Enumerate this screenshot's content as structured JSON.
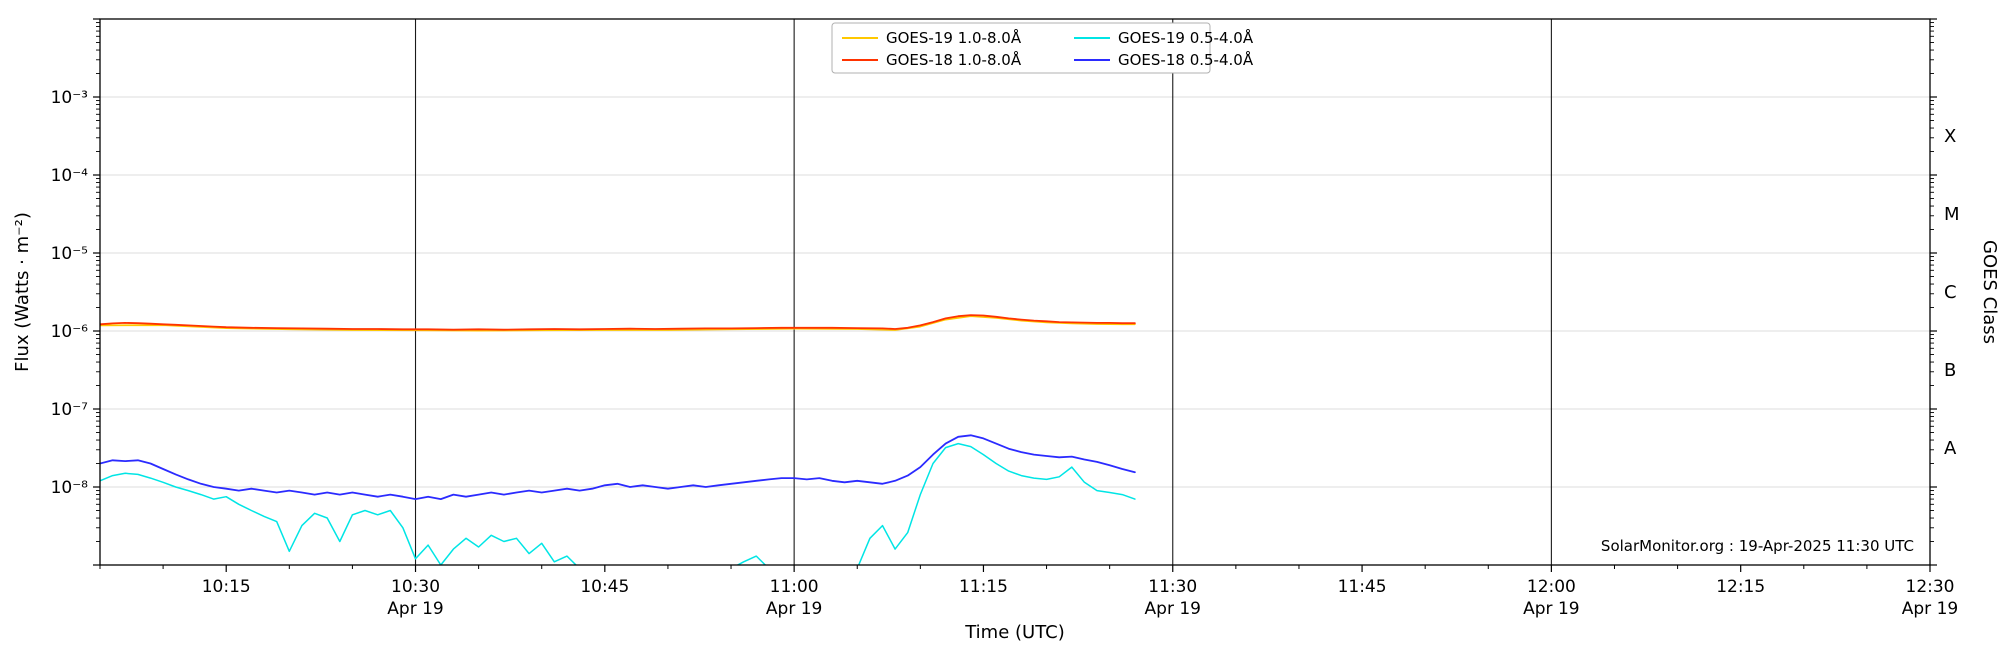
{
  "page": {
    "background": "#ffffff"
  },
  "chart_data": {
    "type": "line",
    "title": "",
    "xlabel": "Time (UTC)",
    "ylabel": "Flux (Watts · m⁻²)",
    "ylabel_right": "GOES Class",
    "x_unit": "minutes after 10:00 UTC on Apr 19",
    "xlim": [
      5,
      150
    ],
    "ylim_log10": [
      -9,
      -2
    ],
    "grid": "horizontal light gray at decades, vertical black lines every 30 min",
    "grid_color": "#dcdcdc",
    "vline_color": "#1a1a1a",
    "axis_color": "#000000",
    "x_major_ticks": [
      {
        "min": 15,
        "label": "10:15"
      },
      {
        "min": 30,
        "label": "10:30"
      },
      {
        "min": 45,
        "label": "10:45"
      },
      {
        "min": 60,
        "label": "11:00"
      },
      {
        "min": 75,
        "label": "11:15"
      },
      {
        "min": 90,
        "label": "11:30"
      },
      {
        "min": 105,
        "label": "11:45"
      },
      {
        "min": 120,
        "label": "12:00"
      },
      {
        "min": 135,
        "label": "12:15"
      },
      {
        "min": 150,
        "label": "12:30"
      }
    ],
    "x_minor_step_min": 5,
    "x_day_label": "Apr 19",
    "x_day_tick_minutes": [
      30,
      60,
      90,
      120,
      150
    ],
    "vertical_lines_minutes": [
      30,
      60,
      90,
      120
    ],
    "y_major_tick_labels": [
      {
        "exp": -3,
        "label": "10⁻³"
      },
      {
        "exp": -4,
        "label": "10⁻⁴"
      },
      {
        "exp": -5,
        "label": "10⁻⁵"
      },
      {
        "exp": -6,
        "label": "10⁻⁶"
      },
      {
        "exp": -7,
        "label": "10⁻⁷"
      },
      {
        "exp": -8,
        "label": "10⁻⁸"
      }
    ],
    "goes_class_labels": [
      {
        "label": "X",
        "log_center": -3.5
      },
      {
        "label": "M",
        "log_center": -4.5
      },
      {
        "label": "C",
        "log_center": -5.5
      },
      {
        "label": "B",
        "log_center": -6.5
      },
      {
        "label": "A",
        "log_center": -7.5
      }
    ],
    "legend": {
      "columns": 2,
      "fill": "column-major",
      "frame": true
    },
    "annotation": "SolarMonitor.org : 19-Apr-2025 11:30 UTC",
    "series": [
      {
        "name": "GOES-19 1.0-8.0Å",
        "color": "#ffc800",
        "width": 1.7,
        "points": [
          [
            5,
            1.18e-06
          ],
          [
            10,
            1.19e-06
          ],
          [
            15,
            1.09e-06
          ],
          [
            20,
            1.05e-06
          ],
          [
            25,
            1.03e-06
          ],
          [
            30,
            1.02e-06
          ],
          [
            35,
            1.01e-06
          ],
          [
            40,
            1.02e-06
          ],
          [
            45,
            1.03e-06
          ],
          [
            50,
            1.03e-06
          ],
          [
            55,
            1.05e-06
          ],
          [
            60,
            1.07e-06
          ],
          [
            65,
            1.06e-06
          ],
          [
            68,
            1.03e-06
          ],
          [
            70,
            1.14e-06
          ],
          [
            72,
            1.4e-06
          ],
          [
            74,
            1.55e-06
          ],
          [
            76,
            1.47e-06
          ],
          [
            78,
            1.36e-06
          ],
          [
            80,
            1.29e-06
          ],
          [
            82,
            1.25e-06
          ],
          [
            84,
            1.23e-06
          ],
          [
            86,
            1.22e-06
          ],
          [
            87,
            1.22e-06
          ]
        ]
      },
      {
        "name": "GOES-18 1.0-8.0Å",
        "color": "#ff3300",
        "width": 1.8,
        "points": [
          [
            5,
            1.22e-06
          ],
          [
            6,
            1.25e-06
          ],
          [
            7,
            1.27e-06
          ],
          [
            8,
            1.26e-06
          ],
          [
            9,
            1.24e-06
          ],
          [
            10,
            1.22e-06
          ],
          [
            11,
            1.2e-06
          ],
          [
            12,
            1.18e-06
          ],
          [
            13,
            1.16e-06
          ],
          [
            14,
            1.14e-06
          ],
          [
            15,
            1.12e-06
          ],
          [
            17,
            1.1e-06
          ],
          [
            19,
            1.09e-06
          ],
          [
            21,
            1.08e-06
          ],
          [
            23,
            1.07e-06
          ],
          [
            25,
            1.06e-06
          ],
          [
            27,
            1.06e-06
          ],
          [
            29,
            1.05e-06
          ],
          [
            31,
            1.05e-06
          ],
          [
            33,
            1.04e-06
          ],
          [
            35,
            1.05e-06
          ],
          [
            37,
            1.04e-06
          ],
          [
            39,
            1.05e-06
          ],
          [
            41,
            1.06e-06
          ],
          [
            43,
            1.05e-06
          ],
          [
            45,
            1.06e-06
          ],
          [
            47,
            1.07e-06
          ],
          [
            49,
            1.06e-06
          ],
          [
            51,
            1.07e-06
          ],
          [
            53,
            1.08e-06
          ],
          [
            55,
            1.08e-06
          ],
          [
            57,
            1.09e-06
          ],
          [
            59,
            1.1e-06
          ],
          [
            61,
            1.1e-06
          ],
          [
            63,
            1.1e-06
          ],
          [
            65,
            1.09e-06
          ],
          [
            67,
            1.08e-06
          ],
          [
            68,
            1.06e-06
          ],
          [
            69,
            1.1e-06
          ],
          [
            70,
            1.18e-06
          ],
          [
            71,
            1.3e-06
          ],
          [
            72,
            1.45e-06
          ],
          [
            73,
            1.55e-06
          ],
          [
            74,
            1.6e-06
          ],
          [
            75,
            1.58e-06
          ],
          [
            76,
            1.52e-06
          ],
          [
            77,
            1.45e-06
          ],
          [
            78,
            1.4e-06
          ],
          [
            79,
            1.36e-06
          ],
          [
            80,
            1.33e-06
          ],
          [
            81,
            1.3e-06
          ],
          [
            82,
            1.29e-06
          ],
          [
            83,
            1.28e-06
          ],
          [
            84,
            1.27e-06
          ],
          [
            85,
            1.27e-06
          ],
          [
            86,
            1.26e-06
          ],
          [
            87,
            1.26e-06
          ]
        ]
      },
      {
        "name": "GOES-19 0.5-4.0Å",
        "color": "#00e5e5",
        "width": 1.5,
        "points": [
          [
            5,
            1.2e-08
          ],
          [
            6,
            1.4e-08
          ],
          [
            7,
            1.5e-08
          ],
          [
            8,
            1.45e-08
          ],
          [
            9,
            1.3e-08
          ],
          [
            10,
            1.15e-08
          ],
          [
            11,
            1e-08
          ],
          [
            12,
            9e-09
          ],
          [
            13,
            8e-09
          ],
          [
            14,
            7e-09
          ],
          [
            15,
            7.5e-09
          ],
          [
            16,
            6e-09
          ],
          [
            17,
            5e-09
          ],
          [
            18,
            4.2e-09
          ],
          [
            19,
            3.6e-09
          ],
          [
            20,
            1.5e-09
          ],
          [
            21,
            3.2e-09
          ],
          [
            22,
            4.6e-09
          ],
          [
            23,
            4e-09
          ],
          [
            24,
            2e-09
          ],
          [
            25,
            4.4e-09
          ],
          [
            26,
            5e-09
          ],
          [
            27,
            4.4e-09
          ],
          [
            28,
            5e-09
          ],
          [
            29,
            3e-09
          ],
          [
            30,
            1.2e-09
          ],
          [
            31,
            1.8e-09
          ],
          [
            32,
            1e-09
          ],
          [
            33,
            1.6e-09
          ],
          [
            34,
            2.2e-09
          ],
          [
            35,
            1.7e-09
          ],
          [
            36,
            2.4e-09
          ],
          [
            37,
            2e-09
          ],
          [
            38,
            2.2e-09
          ],
          [
            39,
            1.4e-09
          ],
          [
            40,
            1.9e-09
          ],
          [
            41,
            1.1e-09
          ],
          [
            42,
            1.3e-09
          ],
          [
            43,
            9e-10
          ],
          [
            44,
            7e-10
          ],
          [
            45,
            6e-10
          ],
          [
            46,
            5e-10
          ],
          [
            48,
            6e-10
          ],
          [
            50,
            5e-10
          ],
          [
            52,
            6e-10
          ],
          [
            54,
            7e-10
          ],
          [
            55,
            9e-10
          ],
          [
            56,
            1.1e-09
          ],
          [
            57,
            1.3e-09
          ],
          [
            58,
            9e-10
          ],
          [
            59,
            6e-10
          ],
          [
            60,
            5e-10
          ],
          [
            62,
            6e-10
          ],
          [
            64,
            7e-10
          ],
          [
            65,
            9e-10
          ],
          [
            66,
            2.2e-09
          ],
          [
            67,
            3.2e-09
          ],
          [
            68,
            1.6e-09
          ],
          [
            69,
            2.6e-09
          ],
          [
            70,
            8e-09
          ],
          [
            71,
            2e-08
          ],
          [
            72,
            3.2e-08
          ],
          [
            73,
            3.6e-08
          ],
          [
            74,
            3.3e-08
          ],
          [
            75,
            2.6e-08
          ],
          [
            76,
            2e-08
          ],
          [
            77,
            1.6e-08
          ],
          [
            78,
            1.4e-08
          ],
          [
            79,
            1.3e-08
          ],
          [
            80,
            1.25e-08
          ],
          [
            81,
            1.35e-08
          ],
          [
            82,
            1.8e-08
          ],
          [
            83,
            1.15e-08
          ],
          [
            84,
            9e-09
          ],
          [
            85,
            8.5e-09
          ],
          [
            86,
            8e-09
          ],
          [
            87,
            7e-09
          ]
        ]
      },
      {
        "name": "GOES-18 0.5-4.0Å",
        "color": "#2b2bff",
        "width": 1.8,
        "points": [
          [
            5,
            2e-08
          ],
          [
            6,
            2.2e-08
          ],
          [
            7,
            2.15e-08
          ],
          [
            8,
            2.2e-08
          ],
          [
            9,
            2e-08
          ],
          [
            10,
            1.7e-08
          ],
          [
            11,
            1.45e-08
          ],
          [
            12,
            1.25e-08
          ],
          [
            13,
            1.1e-08
          ],
          [
            14,
            1e-08
          ],
          [
            15,
            9.5e-09
          ],
          [
            16,
            9e-09
          ],
          [
            17,
            9.5e-09
          ],
          [
            18,
            9e-09
          ],
          [
            19,
            8.5e-09
          ],
          [
            20,
            9e-09
          ],
          [
            21,
            8.5e-09
          ],
          [
            22,
            8e-09
          ],
          [
            23,
            8.5e-09
          ],
          [
            24,
            8e-09
          ],
          [
            25,
            8.5e-09
          ],
          [
            26,
            8e-09
          ],
          [
            27,
            7.5e-09
          ],
          [
            28,
            8e-09
          ],
          [
            29,
            7.5e-09
          ],
          [
            30,
            7e-09
          ],
          [
            31,
            7.5e-09
          ],
          [
            32,
            7e-09
          ],
          [
            33,
            8e-09
          ],
          [
            34,
            7.5e-09
          ],
          [
            35,
            8e-09
          ],
          [
            36,
            8.5e-09
          ],
          [
            37,
            8e-09
          ],
          [
            38,
            8.5e-09
          ],
          [
            39,
            9e-09
          ],
          [
            40,
            8.5e-09
          ],
          [
            41,
            9e-09
          ],
          [
            42,
            9.5e-09
          ],
          [
            43,
            9e-09
          ],
          [
            44,
            9.5e-09
          ],
          [
            45,
            1.05e-08
          ],
          [
            46,
            1.1e-08
          ],
          [
            47,
            1e-08
          ],
          [
            48,
            1.05e-08
          ],
          [
            49,
            1e-08
          ],
          [
            50,
            9.5e-09
          ],
          [
            51,
            1e-08
          ],
          [
            52,
            1.05e-08
          ],
          [
            53,
            1e-08
          ],
          [
            54,
            1.05e-08
          ],
          [
            55,
            1.1e-08
          ],
          [
            56,
            1.15e-08
          ],
          [
            57,
            1.2e-08
          ],
          [
            58,
            1.25e-08
          ],
          [
            59,
            1.3e-08
          ],
          [
            60,
            1.3e-08
          ],
          [
            61,
            1.25e-08
          ],
          [
            62,
            1.3e-08
          ],
          [
            63,
            1.2e-08
          ],
          [
            64,
            1.15e-08
          ],
          [
            65,
            1.2e-08
          ],
          [
            66,
            1.15e-08
          ],
          [
            67,
            1.1e-08
          ],
          [
            68,
            1.2e-08
          ],
          [
            69,
            1.4e-08
          ],
          [
            70,
            1.8e-08
          ],
          [
            71,
            2.6e-08
          ],
          [
            72,
            3.6e-08
          ],
          [
            73,
            4.4e-08
          ],
          [
            74,
            4.6e-08
          ],
          [
            75,
            4.2e-08
          ],
          [
            76,
            3.6e-08
          ],
          [
            77,
            3.1e-08
          ],
          [
            78,
            2.8e-08
          ],
          [
            79,
            2.6e-08
          ],
          [
            80,
            2.5e-08
          ],
          [
            81,
            2.4e-08
          ],
          [
            82,
            2.45e-08
          ],
          [
            83,
            2.25e-08
          ],
          [
            84,
            2.1e-08
          ],
          [
            85,
            1.9e-08
          ],
          [
            86,
            1.7e-08
          ],
          [
            87,
            1.55e-08
          ]
        ]
      }
    ]
  }
}
